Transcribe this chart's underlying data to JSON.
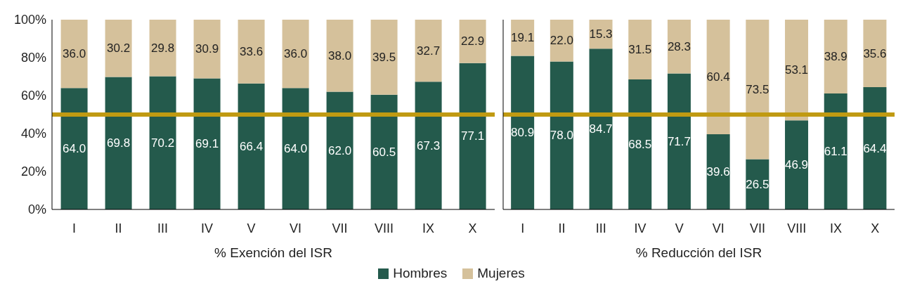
{
  "chart_data": [
    {
      "type": "bar",
      "stacked": true,
      "xlabel": "% Exención del ISR",
      "categories": [
        "I",
        "II",
        "III",
        "IV",
        "V",
        "VI",
        "VII",
        "VIII",
        "IX",
        "X"
      ],
      "series": [
        {
          "name": "Hombres",
          "color": "#245a4c",
          "values": [
            64.0,
            69.8,
            70.2,
            69.1,
            66.4,
            64.0,
            62.0,
            60.5,
            67.3,
            77.1
          ],
          "value_labels": [
            "64.0",
            "69.8",
            "70.2",
            "69.1",
            "66.4",
            "64.0",
            "62.0",
            "60.5",
            "67.3",
            "77.1"
          ]
        },
        {
          "name": "Mujeres",
          "color": "#d5c19b",
          "values": [
            36.0,
            30.2,
            29.8,
            30.9,
            33.6,
            36.0,
            38.0,
            39.5,
            32.7,
            22.9
          ],
          "value_labels": [
            "36.0",
            "30.2",
            "29.8",
            "30.9",
            "33.6",
            "36.0",
            "38.0",
            "39.5",
            "32.7",
            "22.9"
          ]
        }
      ],
      "ylim": [
        0,
        100
      ],
      "yticks": [
        {
          "value": 0,
          "label": "0%"
        },
        {
          "value": 20,
          "label": "20%"
        },
        {
          "value": 40,
          "label": "40%"
        },
        {
          "value": 60,
          "label": "60%"
        },
        {
          "value": 80,
          "label": "80%"
        },
        {
          "value": 100,
          "label": "100%"
        }
      ],
      "ref_lines": [
        {
          "axis": "y",
          "value": 50,
          "color": "#c09a12"
        }
      ],
      "grid": false,
      "legend": "bottom"
    },
    {
      "type": "bar",
      "stacked": true,
      "xlabel": "% Reducción del ISR",
      "categories": [
        "I",
        "II",
        "III",
        "IV",
        "V",
        "VI",
        "VII",
        "VIII",
        "IX",
        "X"
      ],
      "series": [
        {
          "color": "#245a4c",
          "values": [
            80.9,
            78.0,
            84.7,
            68.5,
            71.7,
            39.6,
            26.5,
            46.9,
            61.1,
            64.4
          ],
          "value_labels": [
            "80.9",
            "78.0",
            "84.7",
            "68.5",
            "71.7",
            "39.6",
            "26.5",
            "46.9",
            "61.1",
            "64.4"
          ]
        },
        {
          "color": "#d5c19b",
          "values": [
            19.1,
            22.0,
            15.3,
            31.5,
            28.3,
            60.4,
            73.5,
            53.1,
            38.9,
            35.6
          ],
          "value_labels": [
            "19.1",
            "22.0",
            "15.3",
            "31.5",
            "28.3",
            "60.4",
            "73.5",
            "53.1",
            "38.9",
            "35.6"
          ]
        }
      ],
      "ylim": [
        0,
        100
      ],
      "ref_lines": [
        {
          "axis": "y",
          "value": 50,
          "color": "#c09a12"
        }
      ],
      "grid": false,
      "tick_labels": "x"
    }
  ]
}
